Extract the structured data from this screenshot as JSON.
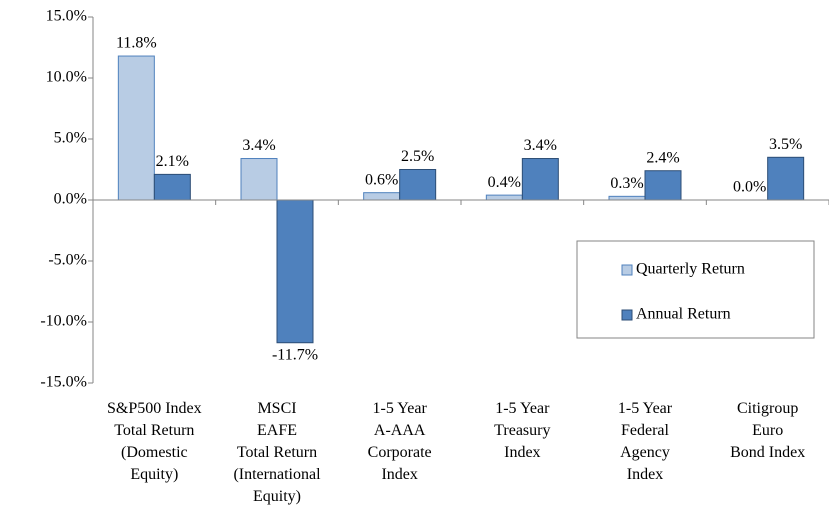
{
  "chart_data": {
    "type": "bar",
    "categories": [
      [
        "S&P500 Index",
        "Total Return",
        "(Domestic",
        "Equity)"
      ],
      [
        "MSCI",
        "EAFE",
        "Total Return",
        "(International",
        "Equity)"
      ],
      [
        "1-5 Year",
        "A-AAA",
        "Corporate",
        "Index"
      ],
      [
        "1-5 Year",
        "Treasury",
        "Index"
      ],
      [
        "1-5 Year",
        "Federal",
        "Agency",
        "Index"
      ],
      [
        "Citigroup",
        "Euro",
        "Bond Index"
      ]
    ],
    "series": [
      {
        "name": "Quarterly Return",
        "color": "#b8cce4",
        "edge": "#4f81bd",
        "values": [
          11.8,
          3.4,
          0.6,
          0.4,
          0.3,
          0.0
        ],
        "value_labels": [
          "11.8%",
          "3.4%",
          "0.6%",
          "0.4%",
          "0.3%",
          "0.0%"
        ]
      },
      {
        "name": "Annual Return",
        "color": "#4f81bd",
        "edge": "#2c4d75",
        "values": [
          2.1,
          -11.7,
          2.5,
          3.4,
          2.4,
          3.5
        ],
        "value_labels": [
          "2.1%",
          "-11.7%",
          "2.5%",
          "3.4%",
          "2.4%",
          "3.5%"
        ]
      }
    ],
    "ylim": [
      -15,
      15
    ],
    "yticks": [
      {
        "value": -15,
        "label": "-15.0%"
      },
      {
        "value": -10,
        "label": "-10.0%"
      },
      {
        "value": -5,
        "label": "-5.0%"
      },
      {
        "value": 0,
        "label": "0.0%"
      },
      {
        "value": 5,
        "label": "5.0%"
      },
      {
        "value": 10,
        "label": "10.0%"
      },
      {
        "value": 15,
        "label": "15.0%"
      }
    ],
    "grid": false
  }
}
